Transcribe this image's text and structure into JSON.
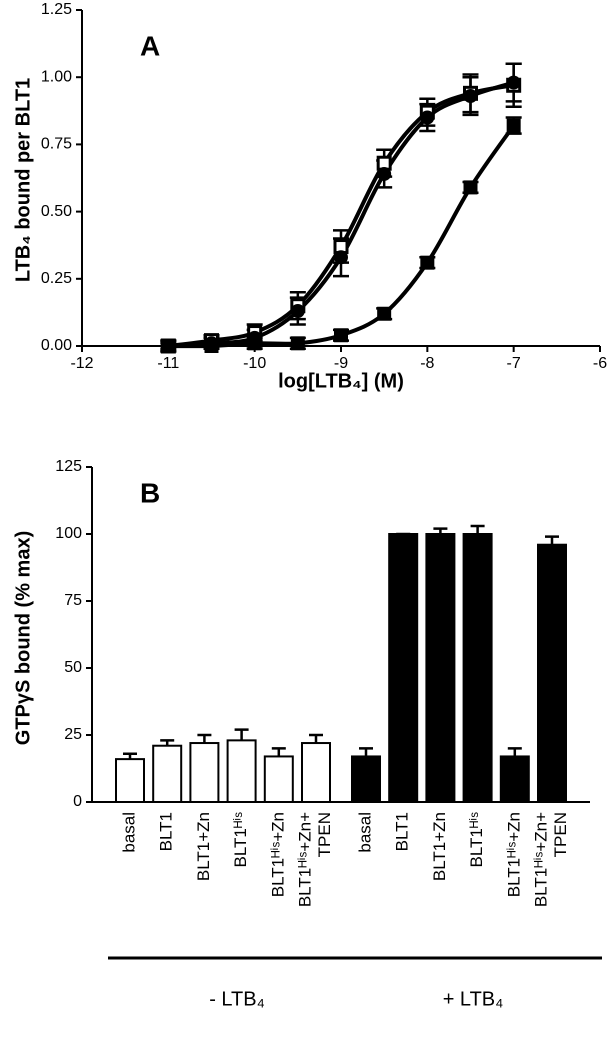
{
  "chart_data": [
    {
      "type": "line",
      "annotation": "A",
      "xlabel": "log[LTB₄] (M)",
      "ylabel": "LTB₄ bound per BLT1",
      "xlim": [
        -12,
        -6
      ],
      "xticks": [
        -12,
        -11,
        -10,
        -9,
        -8,
        -7,
        -6
      ],
      "ylim": [
        0,
        1.25
      ],
      "yticks": [
        {
          "value": 0,
          "label": "0.00"
        },
        0.25,
        {
          "value": 0.5,
          "label": "0.50"
        },
        0.75,
        {
          "value": 1,
          "label": "1.00"
        },
        1.25
      ],
      "series": [
        {
          "color": "#000000",
          "marker": "square-open",
          "x": [
            -11,
            -10.5,
            -10,
            -9.5,
            -9,
            -8.5,
            -8,
            -7.5,
            -7
          ],
          "values": [
            0.0,
            0.02,
            0.05,
            0.15,
            0.37,
            0.68,
            0.87,
            0.94,
            0.97
          ],
          "errors": [
            0.02,
            0.02,
            0.03,
            0.05,
            0.06,
            0.05,
            0.05,
            0.07,
            0.08
          ]
        },
        {
          "color": "#000000",
          "marker": "circle",
          "x": [
            -11,
            -10.5,
            -10,
            -9.5,
            -9,
            -8.5,
            -8,
            -7.5,
            -7
          ],
          "values": [
            0.0,
            0.01,
            0.03,
            0.13,
            0.33,
            0.64,
            0.85,
            0.93,
            0.98
          ],
          "errors": [
            0.02,
            0.02,
            0.03,
            0.05,
            0.07,
            0.05,
            0.05,
            0.07,
            0.07
          ]
        },
        {
          "color": "#000000",
          "marker": "square",
          "x": [
            -11,
            -10.5,
            -10,
            -9.5,
            -9,
            -8.5,
            -8,
            -7.5,
            -7
          ],
          "values": [
            0.0,
            0.0,
            0.01,
            0.01,
            0.04,
            0.12,
            0.31,
            0.59,
            0.82
          ],
          "errors": [
            0.01,
            0.01,
            0.02,
            0.02,
            0.02,
            0.02,
            0.02,
            0.02,
            0.03
          ]
        }
      ]
    },
    {
      "type": "bar",
      "annotation": "B",
      "ylabel": "GTPγS bound (% max)",
      "ylim": [
        0,
        125
      ],
      "yticks": [
        0,
        25,
        50,
        75,
        100,
        125
      ],
      "groups": [
        {
          "label": "- LTB₄",
          "color": "#ffffff",
          "categories": [
            "basal",
            "BLT1",
            "BLT1+Zn",
            "BLT1ᴴⁱˢ",
            "BLT1ᴴⁱˢ+Zn",
            [
              "BLT1ᴴⁱˢ+Zn+",
              "TPEN"
            ]
          ],
          "values": [
            16,
            21,
            22,
            23,
            17,
            22
          ],
          "errors": [
            2,
            2,
            3,
            4,
            3,
            3
          ]
        },
        {
          "label": "+ LTB₄",
          "color": "#000000",
          "categories": [
            "basal",
            "BLT1",
            "BLT1+Zn",
            "BLT1ᴴⁱˢ",
            "BLT1ᴴⁱˢ+Zn",
            [
              "BLT1ᴴⁱˢ+Zn+",
              "TPEN"
            ]
          ],
          "values": [
            17,
            100,
            100,
            100,
            17,
            96
          ],
          "errors": [
            3,
            0,
            2,
            3,
            3,
            3
          ]
        }
      ]
    }
  ]
}
